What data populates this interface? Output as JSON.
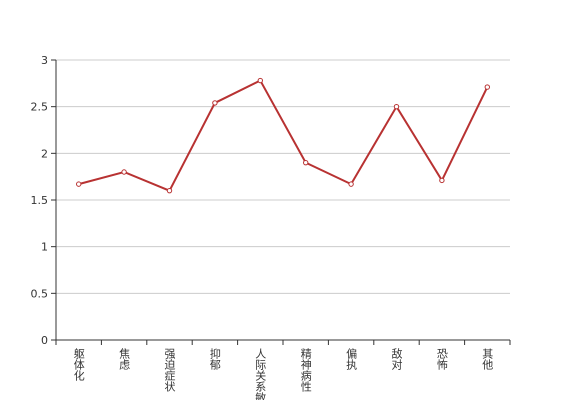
{
  "chart_data": {
    "type": "line",
    "categories": [
      "躯体化",
      "焦虑",
      "强迫症状",
      "抑郁",
      "人际关系敏感",
      "精神病性",
      "偏执",
      "敌对",
      "恐怖",
      "其他"
    ],
    "series": [
      {
        "color": "#b83232",
        "values": [
          1.67,
          1.8,
          1.6,
          2.54,
          2.78,
          1.9,
          1.67,
          2.5,
          1.71,
          2.71
        ]
      }
    ],
    "ylim": [
      0,
      3
    ],
    "yticks": [
      0,
      0.5,
      1,
      1.5,
      2,
      2.5,
      3
    ],
    "grid": true
  }
}
